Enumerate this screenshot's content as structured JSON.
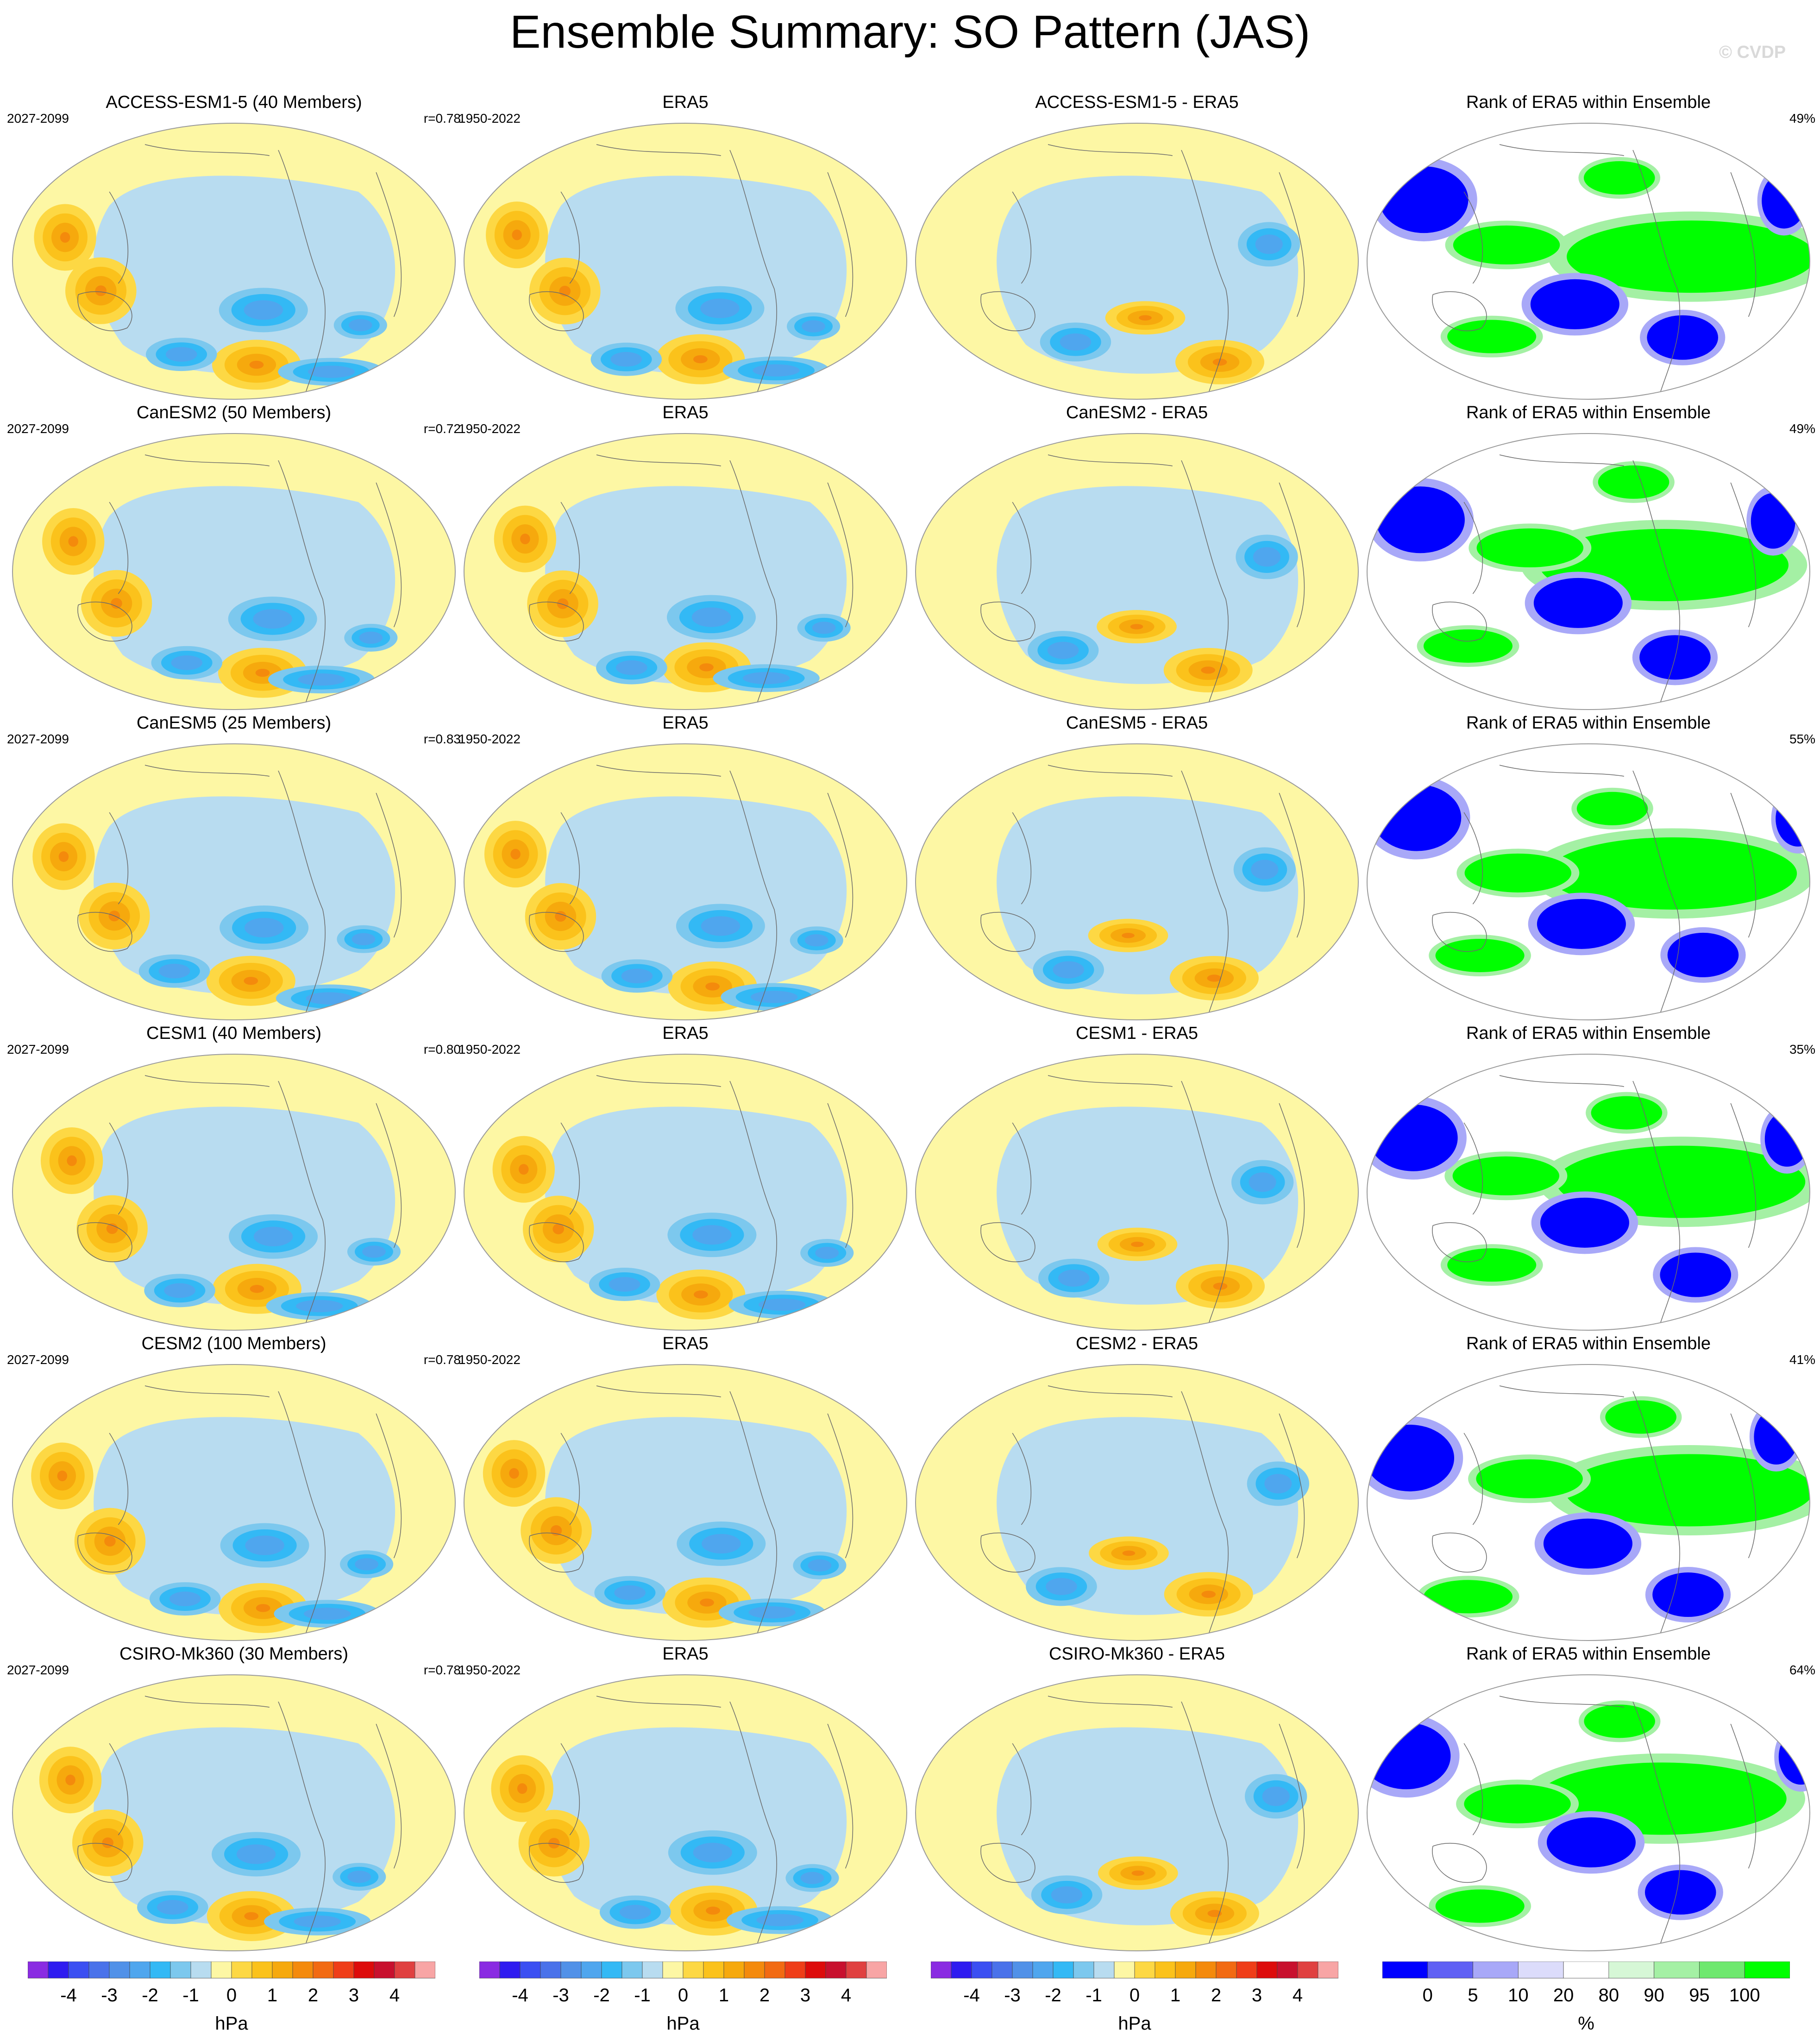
{
  "header": {
    "title": "Ensemble Summary: SO Pattern (JAS)",
    "watermark": "© CVDP"
  },
  "chart_data": {
    "type": "heatmap",
    "rows": [
      {
        "model_title": "ACCESS-ESM1-5 (40 Members)",
        "model_years": "2027-2099",
        "pattern_corr": "r=0.78",
        "obs_title": "ERA5",
        "obs_years": "1950-2022",
        "diff_title": "ACCESS-ESM1-5 - ERA5",
        "rank_title": "Rank of ERA5 within Ensemble",
        "rank_pct": "49%"
      },
      {
        "model_title": "CanESM2 (50 Members)",
        "model_years": "2027-2099",
        "pattern_corr": "r=0.72",
        "obs_title": "ERA5",
        "obs_years": "1950-2022",
        "diff_title": "CanESM2 - ERA5",
        "rank_title": "Rank of ERA5 within Ensemble",
        "rank_pct": "49%"
      },
      {
        "model_title": "CanESM5 (25 Members)",
        "model_years": "2027-2099",
        "pattern_corr": "r=0.83",
        "obs_title": "ERA5",
        "obs_years": "1950-2022",
        "diff_title": "CanESM5 - ERA5",
        "rank_title": "Rank of ERA5 within Ensemble",
        "rank_pct": "55%"
      },
      {
        "model_title": "CESM1 (40 Members)",
        "model_years": "2027-2099",
        "pattern_corr": "r=0.80",
        "obs_title": "ERA5",
        "obs_years": "1950-2022",
        "diff_title": "CESM1 - ERA5",
        "rank_title": "Rank of ERA5 within Ensemble",
        "rank_pct": "35%"
      },
      {
        "model_title": "CESM2 (100 Members)",
        "model_years": "2027-2099",
        "pattern_corr": "r=0.78",
        "obs_title": "ERA5",
        "obs_years": "1950-2022",
        "diff_title": "CESM2 - ERA5",
        "rank_title": "Rank of ERA5 within Ensemble",
        "rank_pct": "41%"
      },
      {
        "model_title": "CSIRO-Mk360 (30 Members)",
        "model_years": "2027-2099",
        "pattern_corr": "r=0.78",
        "obs_title": "ERA5",
        "obs_years": "1950-2022",
        "diff_title": "CSIRO-Mk360 - ERA5",
        "rank_title": "Rank of ERA5 within Ensemble",
        "rank_pct": "64%"
      }
    ],
    "slp_colorbar": {
      "unit": "hPa",
      "tick_labels": [
        "-4",
        "-3",
        "-2",
        "-1",
        "0",
        "1",
        "2",
        "3",
        "4"
      ],
      "colors": [
        "#8a2be2",
        "#2f1bf0",
        "#3b4ff2",
        "#4a72ea",
        "#5191e8",
        "#4fa6ee",
        "#33b9f5",
        "#7cc8ee",
        "#b8dcf0",
        "#fdf7a4",
        "#fdd844",
        "#fbc21b",
        "#f6a90d",
        "#f48a0c",
        "#f26a12",
        "#ef3d18",
        "#dd0b0b",
        "#c8102e",
        "#e04040",
        "#f8a5a5"
      ]
    },
    "rank_colorbar": {
      "unit": "%",
      "tick_labels": [
        "0",
        "5",
        "10",
        "20",
        "80",
        "90",
        "95",
        "100"
      ],
      "colors": [
        "#0000ff",
        "#6060f4",
        "#a8a8f8",
        "#dcdcfb",
        "#ffffff",
        "#d6f7d6",
        "#a4f0a4",
        "#6ee86e",
        "#00ff00"
      ]
    },
    "shading_palette": {
      "ocean_base": "#b8dcf0",
      "land_base": "#fdf7a4",
      "neg_levels": [
        "#7cc8ee",
        "#33b9f5",
        "#4fa6ee"
      ],
      "pos_levels": [
        "#fdd844",
        "#fbc21b",
        "#f6a90d",
        "#f48a0c"
      ],
      "rank_low": "#0000ff",
      "rank_high": "#00ff00"
    }
  }
}
